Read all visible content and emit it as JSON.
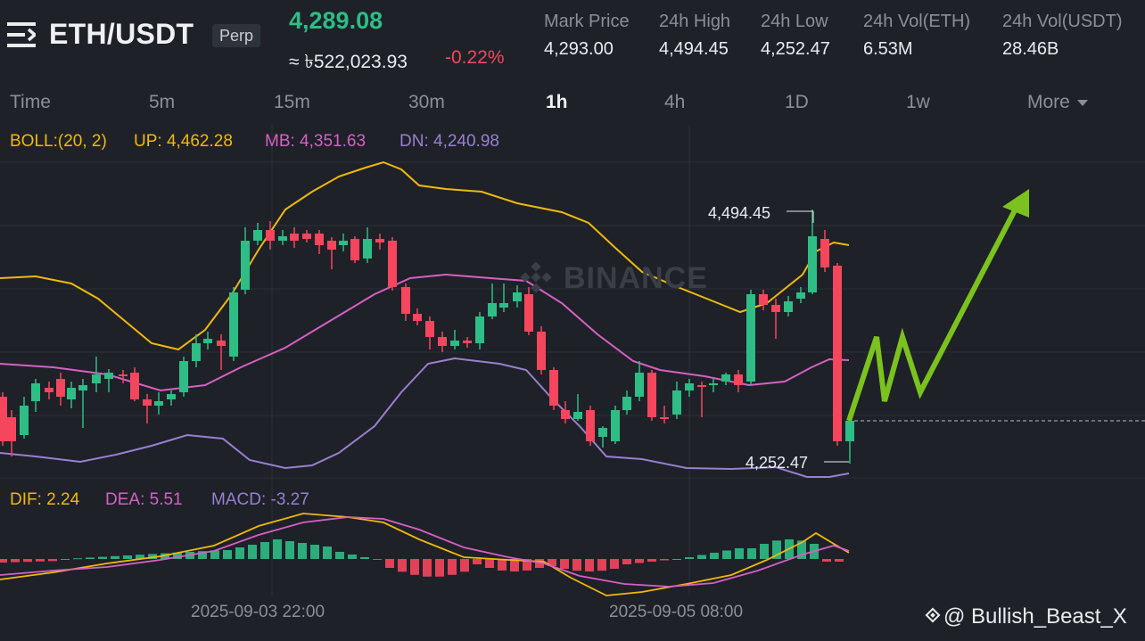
{
  "header": {
    "pair": "ETH/USDT",
    "badge": "Perp",
    "last_price": "4,289.08",
    "fiat_price": "≈ ৳522,023.93",
    "change_pct": "-0.22%",
    "stats": [
      {
        "label": "Mark Price",
        "value": "4,293.00"
      },
      {
        "label": "24h High",
        "value": "4,494.45"
      },
      {
        "label": "24h Low",
        "value": "4,252.47"
      },
      {
        "label": "24h Vol(ETH)",
        "value": "6.53M"
      },
      {
        "label": "24h Vol(USDT)",
        "value": "28.46B"
      }
    ]
  },
  "intervals": {
    "items": [
      "Time",
      "5m",
      "15m",
      "30m",
      "1h",
      "4h",
      "1D",
      "1w",
      "More"
    ],
    "active": "1h"
  },
  "boll_legend": {
    "name": "BOLL:(20, 2)",
    "up": "UP: 4,462.28",
    "mb": "MB: 4,351.63",
    "dn": "DN: 4,240.98"
  },
  "macd_legend": {
    "dif": "DIF: 2.24",
    "dea": "DEA: 5.51",
    "macd": "MACD: -3.27"
  },
  "chart": {
    "high_label": "4,494.45",
    "low_label": "4,252.47",
    "x_labels": [
      "2025-09-03 22:00",
      "2025-09-05 08:00"
    ],
    "watermark": "BINANCE",
    "colors": {
      "up": "#2ebd85",
      "down": "#f6465d",
      "boll_up": "#f0b90b",
      "boll_mb": "#d660c4",
      "boll_dn": "#9a7fd1",
      "dif": "#f0b90b",
      "dea": "#d660c4",
      "annotation_arrow": "#7cc21f",
      "background": "#1e2128"
    }
  },
  "credit": "@ Bullish_Beast_X"
}
